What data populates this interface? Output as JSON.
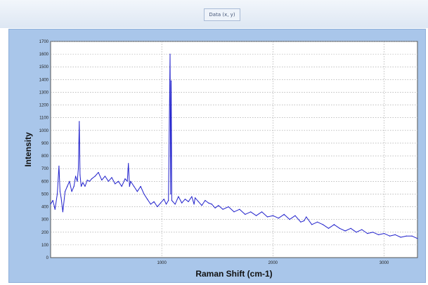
{
  "window": {
    "tab_label": "Data (x, y)"
  },
  "colors": {
    "series": "#2222cc",
    "frame": "#a9c6ea",
    "grid": "#9a9a9a",
    "plot_bg": "#ffffff"
  },
  "chart_data": {
    "type": "line",
    "title": "",
    "xlabel": "Raman Shift (cm-1)",
    "ylabel": "Intensity",
    "xlim": [
      0,
      3300
    ],
    "ylim": [
      0,
      1700
    ],
    "xticks": [
      1000,
      2000,
      3000
    ],
    "yticks": [
      0,
      100,
      200,
      300,
      400,
      500,
      600,
      700,
      800,
      900,
      1000,
      1100,
      1200,
      1300,
      1400,
      1500,
      1600,
      1700
    ],
    "grid": true,
    "legend": "none",
    "series": [
      {
        "x": [
          0,
          20,
          40,
          60,
          75,
          85,
          95,
          110,
          130,
          150,
          170,
          190,
          210,
          225,
          240,
          250,
          258,
          265,
          275,
          290,
          310,
          330,
          350,
          370,
          400,
          430,
          460,
          490,
          520,
          550,
          580,
          610,
          640,
          670,
          690,
          700,
          710,
          720,
          750,
          780,
          810,
          840,
          870,
          900,
          930,
          960,
          990,
          1020,
          1040,
          1060,
          1075,
          1080,
          1085,
          1090,
          1100,
          1120,
          1150,
          1180,
          1210,
          1240,
          1270,
          1290,
          1300,
          1330,
          1360,
          1390,
          1420,
          1450,
          1480,
          1510,
          1550,
          1600,
          1650,
          1700,
          1750,
          1800,
          1850,
          1900,
          1950,
          2000,
          2050,
          2100,
          2150,
          2200,
          2250,
          2280,
          2300,
          2350,
          2400,
          2450,
          2500,
          2550,
          2600,
          2650,
          2700,
          2750,
          2800,
          2850,
          2900,
          2950,
          3000,
          3050,
          3100,
          3150,
          3200,
          3250,
          3300
        ],
        "y": [
          420,
          450,
          380,
          500,
          720,
          520,
          470,
          360,
          520,
          560,
          600,
          520,
          560,
          640,
          600,
          700,
          1070,
          650,
          560,
          590,
          560,
          610,
          600,
          620,
          640,
          670,
          610,
          640,
          600,
          630,
          580,
          600,
          560,
          620,
          600,
          740,
          560,
          600,
          560,
          520,
          560,
          500,
          460,
          420,
          440,
          400,
          430,
          460,
          420,
          450,
          1600,
          500,
          1390,
          450,
          440,
          420,
          480,
          430,
          460,
          440,
          480,
          420,
          470,
          440,
          410,
          450,
          430,
          420,
          390,
          410,
          380,
          400,
          360,
          380,
          340,
          360,
          330,
          360,
          320,
          330,
          310,
          340,
          300,
          330,
          280,
          290,
          320,
          260,
          280,
          260,
          230,
          260,
          230,
          210,
          230,
          200,
          220,
          190,
          200,
          180,
          190,
          170,
          180,
          160,
          170,
          170,
          150
        ]
      }
    ]
  }
}
